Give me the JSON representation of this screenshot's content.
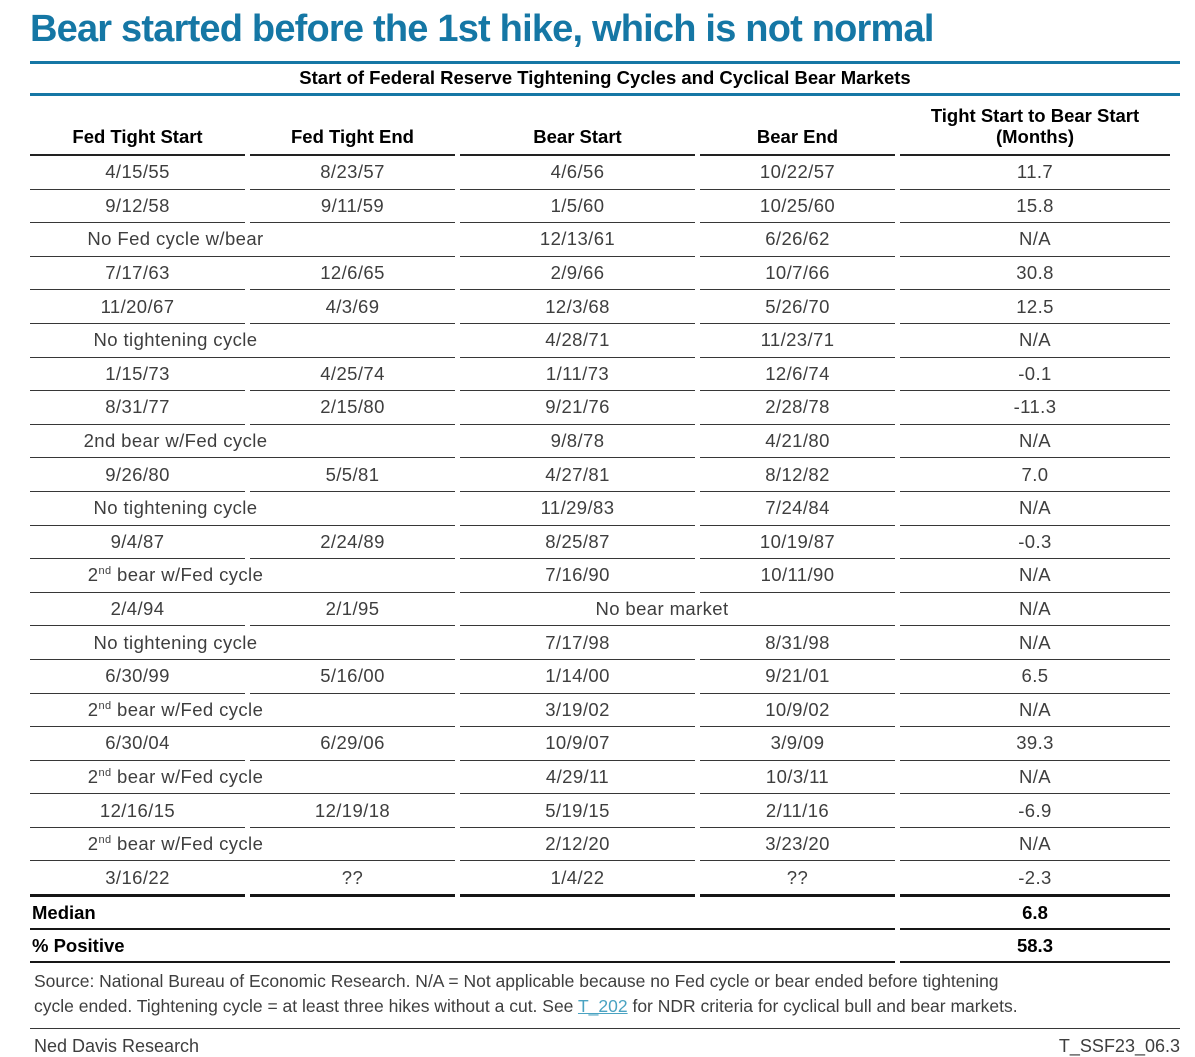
{
  "page_title": "Bear started before the 1st hike, which is not normal",
  "colors": {
    "accent_blue": "#1577a5",
    "link_teal": "#4aa3c2",
    "rule_dark": "#373737",
    "text_gray": "#3e3e3e"
  },
  "table": {
    "subtitle": "Start of Federal Reserve Tightening Cycles and Cyclical Bear Markets",
    "columns": [
      {
        "label": "Fed Tight Start"
      },
      {
        "label": "Fed Tight End"
      },
      {
        "label": "Bear Start"
      },
      {
        "label": "Bear End"
      },
      {
        "label": "Tight Start to Bear Start",
        "label2": "(Months)"
      }
    ],
    "rows": [
      {
        "cells": [
          "4/15/55",
          "8/23/57",
          "4/6/56",
          "10/22/57",
          "11.7"
        ]
      },
      {
        "cells": [
          "9/12/58",
          "9/11/59",
          "1/5/60",
          "10/25/60",
          "15.8"
        ]
      },
      {
        "span": "1-2",
        "label": "No Fed cycle w/bear",
        "cells": [
          "12/13/61",
          "6/26/62",
          "N/A"
        ]
      },
      {
        "cells": [
          "7/17/63",
          "12/6/65",
          "2/9/66",
          "10/7/66",
          "30.8"
        ]
      },
      {
        "cells": [
          "11/20/67",
          "4/3/69",
          "12/3/68",
          "5/26/70",
          "12.5"
        ]
      },
      {
        "span": "1-2",
        "label": "No tightening cycle",
        "cells": [
          "4/28/71",
          "11/23/71",
          "N/A"
        ]
      },
      {
        "cells": [
          "1/15/73",
          "4/25/74",
          "1/11/73",
          "12/6/74",
          "-0.1"
        ]
      },
      {
        "cells": [
          "8/31/77",
          "2/15/80",
          "9/21/76",
          "2/28/78",
          "-11.3"
        ]
      },
      {
        "span": "1-2",
        "label": "2nd bear w/Fed cycle",
        "cells": [
          "9/8/78",
          "4/21/80",
          "N/A"
        ]
      },
      {
        "cells": [
          "9/26/80",
          "5/5/81",
          "4/27/81",
          "8/12/82",
          "7.0"
        ]
      },
      {
        "span": "1-2",
        "label": "No tightening cycle",
        "cells": [
          "11/29/83",
          "7/24/84",
          "N/A"
        ]
      },
      {
        "cells": [
          "9/4/87",
          "2/24/89",
          "8/25/87",
          "10/19/87",
          "-0.3"
        ]
      },
      {
        "span": "1-2",
        "label_pre": "2",
        "label_sup": "nd",
        "label_post": " bear w/Fed cycle",
        "cells": [
          "7/16/90",
          "10/11/90",
          "N/A"
        ]
      },
      {
        "span": "3-4",
        "label": "No bear market",
        "cells": [
          "2/4/94",
          "2/1/95",
          "N/A"
        ]
      },
      {
        "span": "1-2",
        "label": "No tightening cycle",
        "cells": [
          "7/17/98",
          "8/31/98",
          "N/A"
        ]
      },
      {
        "cells": [
          "6/30/99",
          "5/16/00",
          "1/14/00",
          "9/21/01",
          "6.5"
        ]
      },
      {
        "span": "1-2",
        "label_pre": "2",
        "label_sup": "nd",
        "label_post": " bear w/Fed cycle",
        "cells": [
          "3/19/02",
          "10/9/02",
          "N/A"
        ]
      },
      {
        "cells": [
          "6/30/04",
          "6/29/06",
          "10/9/07",
          "3/9/09",
          "39.3"
        ]
      },
      {
        "span": "1-2",
        "label_pre": "2",
        "label_sup": "nd",
        "label_post": " bear w/Fed cycle",
        "cells": [
          "4/29/11",
          "10/3/11",
          "N/A"
        ]
      },
      {
        "cells": [
          "12/16/15",
          "12/19/18",
          "5/19/15",
          "2/11/16",
          "-6.9"
        ]
      },
      {
        "span": "1-2",
        "label_pre": "2",
        "label_sup": "nd",
        "label_post": " bear w/Fed cycle",
        "cells": [
          "2/12/20",
          "3/23/20",
          "N/A"
        ]
      },
      {
        "cells": [
          "3/16/22",
          "??",
          "1/4/22",
          "??",
          "-2.3"
        ]
      }
    ],
    "summary": [
      {
        "label": "Median",
        "value": "6.8"
      },
      {
        "label": "% Positive",
        "value": "58.3"
      }
    ]
  },
  "source": {
    "line1": "Source: National Bureau of Economic Research. N/A = Not applicable because no Fed cycle or bear ended before tightening",
    "line2_pre": "cycle ended. Tightening cycle = at least three hikes without a cut. See ",
    "link": "T_202",
    "line2_post": " for NDR criteria for cyclical bull and bear markets."
  },
  "footer": {
    "left": "Ned Davis Research",
    "right": "T_SSF23_06.3"
  }
}
